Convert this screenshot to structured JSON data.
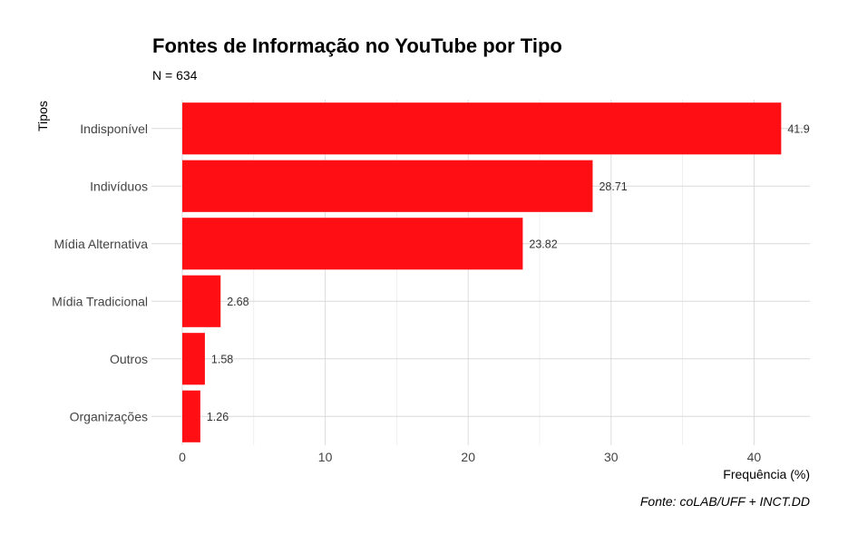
{
  "chart_data": {
    "type": "bar",
    "orientation": "horizontal",
    "title": "Fontes de Informação no YouTube por Tipo",
    "subtitle": "N = 634",
    "xlabel": "Frequência (%)",
    "ylabel": "Tipos",
    "caption": "Fonte: coLAB/UFF + INCT.DD",
    "categories": [
      "Indisponível",
      "Indivíduos",
      "Mídia Alternativa",
      "Mídia Tradicional",
      "Outros",
      "Organizações"
    ],
    "values": [
      41.9,
      28.71,
      23.82,
      2.68,
      1.58,
      1.26
    ],
    "data_labels": [
      "41.9",
      "28.71",
      "23.82",
      "2.68",
      "1.58",
      "1.26"
    ],
    "xticks": [
      0,
      10,
      20,
      30,
      40
    ],
    "xtick_labels": [
      "0",
      "10",
      "20",
      "30",
      "40"
    ],
    "xlim": [
      0,
      44
    ],
    "grid": true,
    "bar_color": "#ff0f14"
  }
}
